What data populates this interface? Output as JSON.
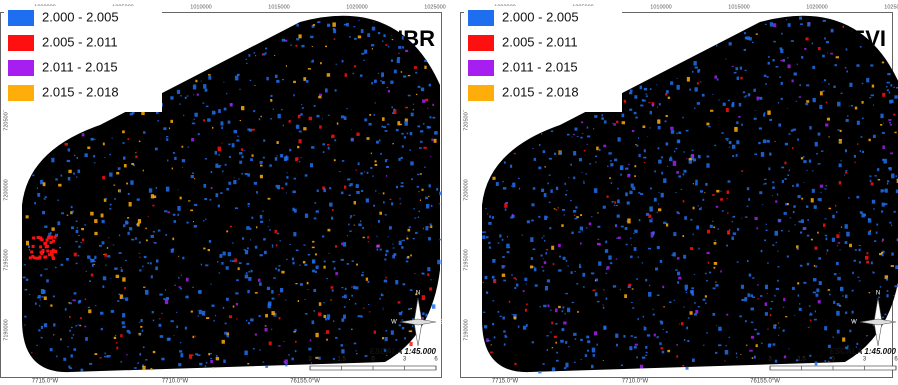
{
  "panels": [
    {
      "title": "NBR",
      "legend": [
        {
          "label": "2.000 - 2.005",
          "color": "#1e6ff0"
        },
        {
          "label": "2.005 - 2.011",
          "color": "#ff1010"
        },
        {
          "label": "2.011 - 2.015",
          "color": "#a61ff0"
        },
        {
          "label": "2.015 - 2.018",
          "color": "#ffad0a"
        }
      ],
      "top_ticks": [
        "1000000",
        "1005000",
        "1010000",
        "1015000",
        "1020000",
        "1025000"
      ],
      "left_ticks": [
        "7205000",
        "7200000",
        "7195000",
        "7190000"
      ],
      "bottom_ticks": [
        "7715.0°W",
        "7710.0°W",
        "76155.0°W"
      ],
      "scale_label": "ESCALA 1:45.000",
      "scale_ticks": [
        "3",
        "1.5",
        "0",
        "3",
        "6"
      ],
      "compass": [
        "N",
        "W",
        "E",
        "S"
      ]
    },
    {
      "title": "EVI",
      "legend": [
        {
          "label": "2.000 - 2.005",
          "color": "#1e6ff0"
        },
        {
          "label": "2.005 - 2.011",
          "color": "#ff1010"
        },
        {
          "label": "2.011 - 2.015",
          "color": "#a61ff0"
        },
        {
          "label": "2.015 - 2.018",
          "color": "#ffad0a"
        }
      ],
      "top_ticks": [
        "1000000",
        "1005000",
        "1010000",
        "1015000",
        "1020000",
        "1025000"
      ],
      "left_ticks": [
        "7205000",
        "7200000",
        "7195000",
        "7190000"
      ],
      "bottom_ticks": [
        "7715.0°W",
        "7710.0°W",
        "76155.0°W"
      ],
      "scale_label": "ESCALA 1:45.000",
      "scale_ticks": [
        "3",
        "1.5",
        "0",
        "3",
        "6"
      ],
      "compass": [
        "N",
        "W",
        "E",
        "S"
      ]
    }
  ]
}
